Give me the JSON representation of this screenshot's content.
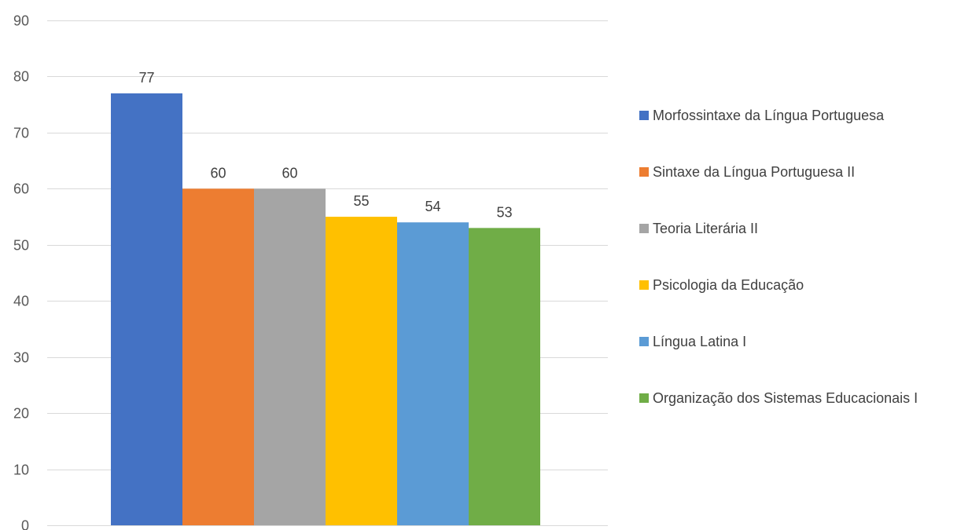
{
  "chart_data": {
    "type": "bar",
    "title": "",
    "xlabel": "",
    "ylabel": "",
    "ylim": [
      0,
      90
    ],
    "yticks": [
      0,
      10,
      20,
      30,
      40,
      50,
      60,
      70,
      80,
      90
    ],
    "grid": true,
    "legend_position": "right",
    "series": [
      {
        "name": "Morfossintaxe da Língua Portuguesa",
        "values": [
          77
        ],
        "color": "#4472C4"
      },
      {
        "name": "Sintaxe da Língua Portuguesa II",
        "values": [
          60
        ],
        "color": "#ED7D31"
      },
      {
        "name": "Teoria Literária II",
        "values": [
          60
        ],
        "color": "#A5A5A5"
      },
      {
        "name": "Psicologia da Educação",
        "values": [
          55
        ],
        "color": "#FFC000"
      },
      {
        "name": "Língua Latina I",
        "values": [
          54
        ],
        "color": "#5B9BD5"
      },
      {
        "name": "Organização dos Sistemas Educacionais I",
        "values": [
          53
        ],
        "color": "#70AD47"
      }
    ]
  }
}
